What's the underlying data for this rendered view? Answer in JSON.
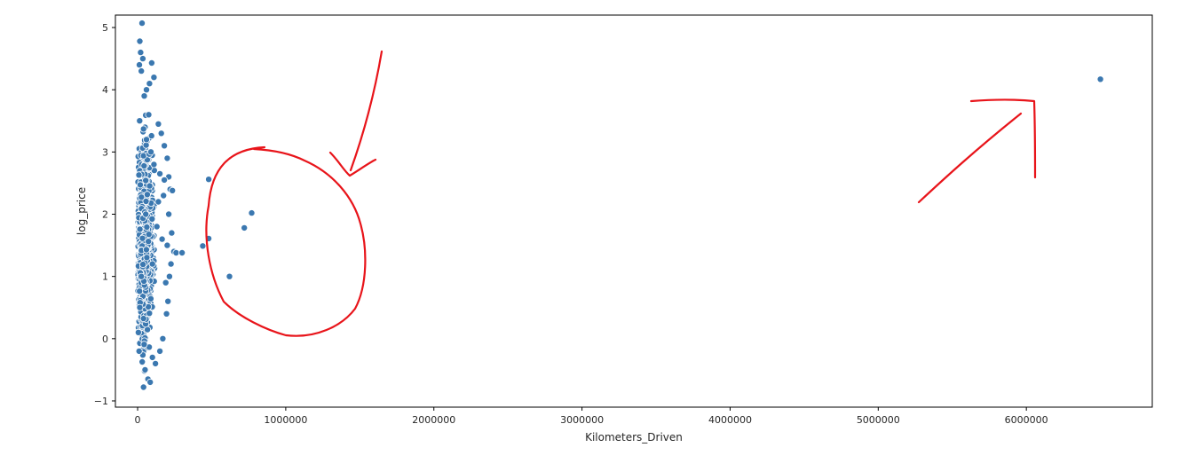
{
  "chart_data": {
    "type": "scatter",
    "title": "",
    "xlabel": "Kilometers_Driven",
    "ylabel": "log_price",
    "xlim": [
      -150000,
      6850000
    ],
    "ylim": [
      -1.1,
      5.2
    ],
    "xticks": [
      0,
      1000000,
      2000000,
      3000000,
      4000000,
      5000000,
      6000000
    ],
    "xtick_labels": [
      "0",
      "1000000",
      "2000000",
      "3000000",
      "4000000",
      "5000000",
      "6000000"
    ],
    "yticks": [
      -1,
      0,
      1,
      2,
      3,
      4,
      5
    ],
    "ytick_labels": [
      "−1",
      "0",
      "1",
      "2",
      "3",
      "4",
      "5"
    ],
    "grid": false,
    "point_color": "#3b78b0",
    "series": [
      {
        "x": [
          30000,
          15000,
          20000,
          35000,
          12000,
          25000,
          95000,
          110000,
          80000,
          60000,
          45000,
          140000,
          160000,
          180000,
          200000,
          210000,
          220000,
          235000,
          180000,
          150000,
          175000,
          210000,
          230000,
          200000,
          245000,
          260000,
          225000,
          300000,
          215000,
          5000,
          10000,
          50000,
          100000,
          150000,
          170000,
          195000,
          205000,
          190000,
          70000,
          40000,
          85000,
          120000,
          15000,
          25000,
          55000,
          90000,
          130000,
          165000,
          140000,
          110000,
          75000,
          60000,
          100000,
          480000,
          770000,
          720000,
          480000,
          440000,
          620000,
          6500000
        ],
        "y": [
          5.07,
          4.78,
          4.6,
          4.5,
          4.4,
          4.3,
          4.43,
          4.2,
          4.1,
          4.0,
          3.9,
          3.45,
          3.3,
          3.1,
          2.9,
          2.6,
          2.4,
          2.38,
          2.55,
          2.65,
          2.3,
          2.0,
          1.7,
          1.5,
          1.4,
          1.38,
          1.2,
          1.38,
          1.0,
          0.1,
          -0.2,
          -0.5,
          -0.3,
          -0.2,
          0.0,
          0.4,
          0.6,
          0.9,
          -0.65,
          -0.78,
          -0.7,
          -0.4,
          0.5,
          1.0,
          2.0,
          3.0,
          1.8,
          1.6,
          2.2,
          2.8,
          3.6,
          3.2,
          1.2,
          2.56,
          2.02,
          1.78,
          1.61,
          1.49,
          1.0,
          4.17
        ]
      }
    ]
  }
}
